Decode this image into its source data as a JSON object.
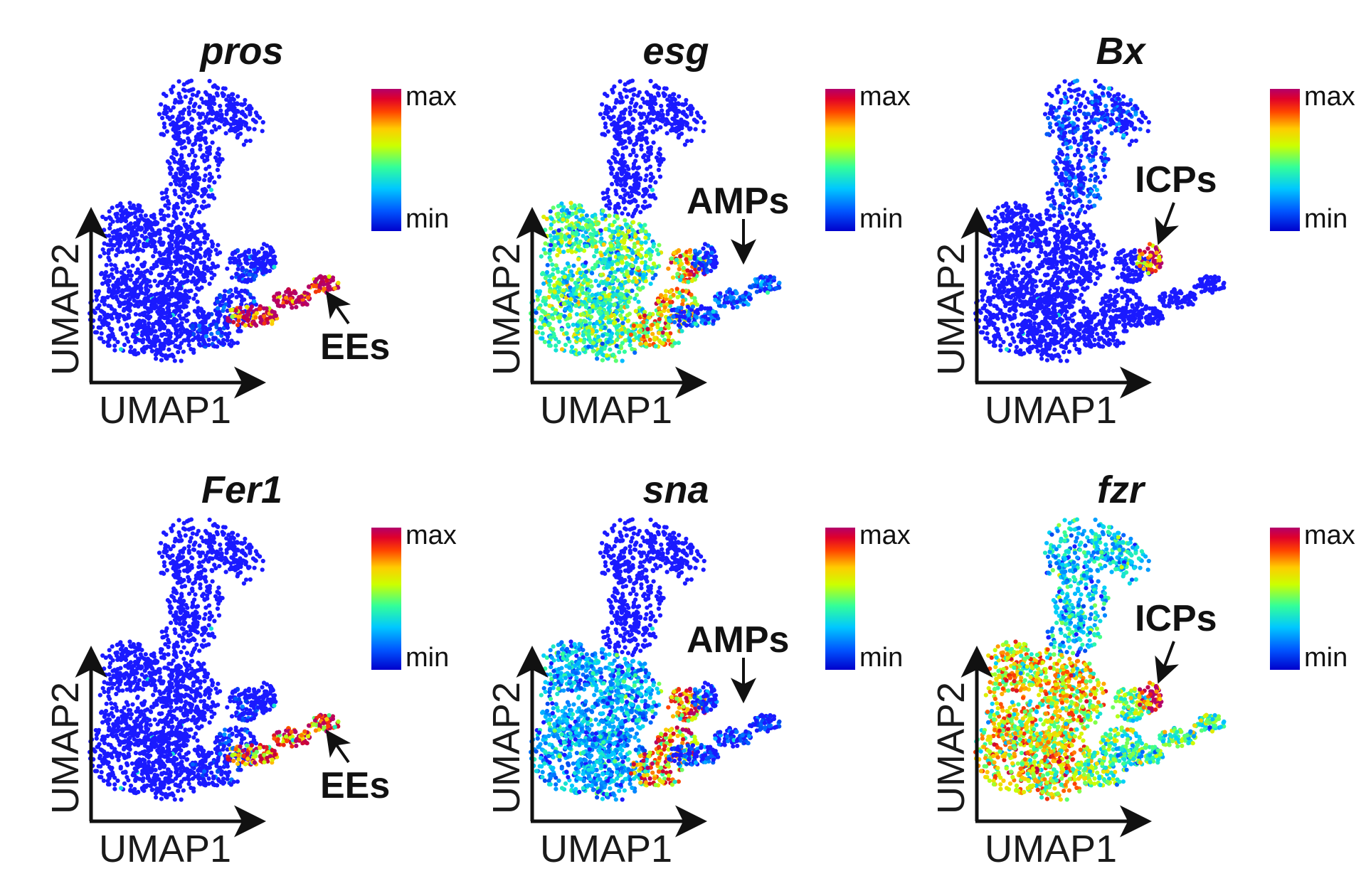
{
  "colors": {
    "low": "#1a1aff",
    "background": "#ffffff",
    "scale": [
      "#0000cc",
      "#0066ff",
      "#00ccff",
      "#33ff99",
      "#ccff00",
      "#ffcc00",
      "#ff4400",
      "#cc0033",
      "#b3006b"
    ]
  },
  "chart_data": [
    {
      "type": "scatter",
      "title": "pros",
      "xlabel": "UMAP1",
      "ylabel": "UMAP2",
      "legend": {
        "max": "max",
        "min": "min",
        "placement": "right"
      },
      "annotation": {
        "label": "EEs",
        "target": "EE cluster (lower-right tip)",
        "arrow": "up-left"
      },
      "expression": {
        "EE": 0.95,
        "AMP": 0.02,
        "ICP": 0.0,
        "main": 0.0,
        "upper": 0.0
      }
    },
    {
      "type": "scatter",
      "title": "esg",
      "xlabel": "UMAP1",
      "ylabel": "UMAP2",
      "legend": {
        "max": "max",
        "min": "min",
        "placement": "right"
      },
      "annotation": {
        "label": "AMPs",
        "target": "AMP cluster",
        "arrow": "down"
      },
      "expression": {
        "EE": 0.1,
        "AMP": 0.6,
        "ICP": 0.05,
        "main": 0.35,
        "upper": 0.0
      }
    },
    {
      "type": "scatter",
      "title": "Bx",
      "xlabel": "UMAP1",
      "ylabel": "UMAP2",
      "legend": {
        "max": "max",
        "min": "min",
        "placement": "right"
      },
      "annotation": {
        "label": "ICPs",
        "target": "ICP cluster",
        "arrow": "down-left"
      },
      "expression": {
        "EE": 0.0,
        "AMP": 0.0,
        "ICP": 0.85,
        "main": 0.0,
        "upper": 0.05
      }
    },
    {
      "type": "scatter",
      "title": "Fer1",
      "xlabel": "UMAP1",
      "ylabel": "UMAP2",
      "legend": {
        "max": "max",
        "min": "min",
        "placement": "right"
      },
      "annotation": {
        "label": "EEs",
        "target": "EE cluster (lower-right tip)",
        "arrow": "up-left"
      },
      "expression": {
        "EE": 0.75,
        "AMP": 0.02,
        "ICP": 0.0,
        "main": 0.0,
        "upper": 0.0
      }
    },
    {
      "type": "scatter",
      "title": "sna",
      "xlabel": "UMAP1",
      "ylabel": "UMAP2",
      "legend": {
        "max": "max",
        "min": "min",
        "placement": "right"
      },
      "annotation": {
        "label": "AMPs",
        "target": "AMP cluster",
        "arrow": "down"
      },
      "expression": {
        "EE": 0.05,
        "AMP": 0.7,
        "ICP": 0.05,
        "main": 0.2,
        "upper": 0.0
      }
    },
    {
      "type": "scatter",
      "title": "fzr",
      "xlabel": "UMAP1",
      "ylabel": "UMAP2",
      "legend": {
        "max": "max",
        "min": "min",
        "placement": "right"
      },
      "annotation": {
        "label": "ICPs",
        "target": "ICP cluster",
        "arrow": "down-left"
      },
      "expression": {
        "EE": 0.35,
        "AMP": 0.4,
        "ICP": 0.9,
        "main": 0.55,
        "upper": 0.25
      }
    }
  ]
}
